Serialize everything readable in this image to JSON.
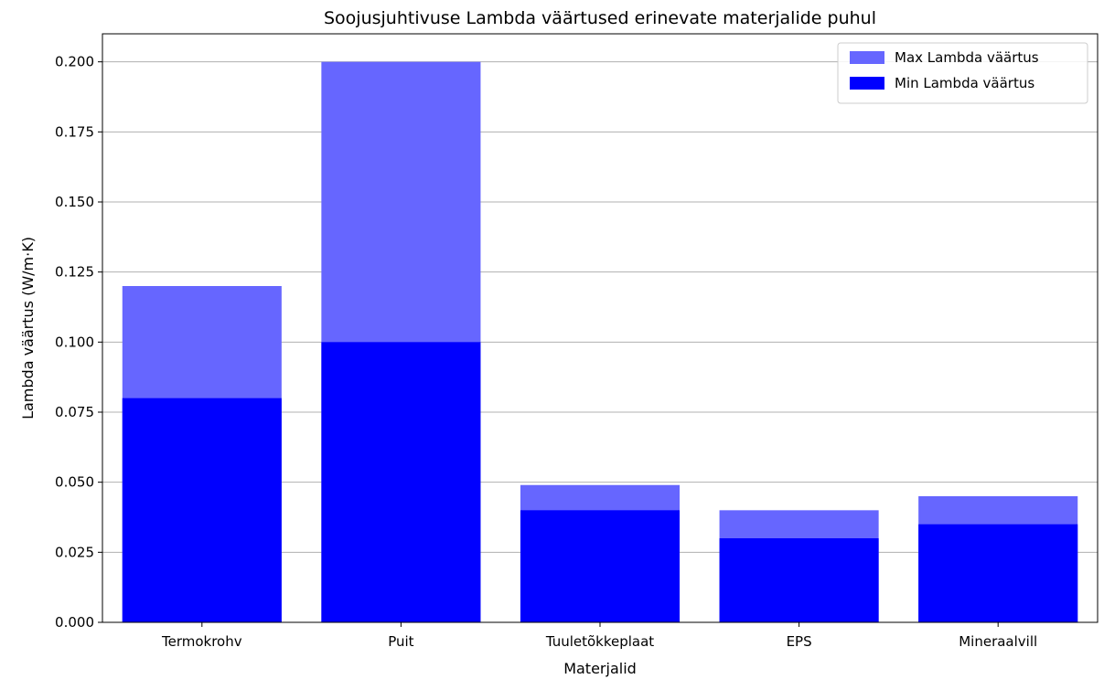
{
  "chart_data": {
    "type": "bar",
    "stacked": false,
    "overlay": true,
    "title": "Soojusjuhtivuse Lambda väärtused erinevate materjalide puhul",
    "xlabel": "Materjalid",
    "ylabel": "Lambda väärtus (W/m·K)",
    "categories": [
      "Termokrohv",
      "Puit",
      "Tuuletõkkeplaat",
      "EPS",
      "Mineraalvill"
    ],
    "series": [
      {
        "name": "Max Lambda väärtus",
        "values": [
          0.12,
          0.2,
          0.049,
          0.04,
          0.045
        ],
        "color": "#6666ff"
      },
      {
        "name": "Min Lambda väärtus",
        "values": [
          0.08,
          0.1,
          0.04,
          0.03,
          0.035
        ],
        "color": "#0000ff"
      }
    ],
    "ylim": [
      0,
      0.21
    ],
    "yticks": [
      "0.000",
      "0.025",
      "0.050",
      "0.075",
      "0.100",
      "0.125",
      "0.150",
      "0.175",
      "0.200"
    ],
    "grid": "y",
    "legend_position": "top-right"
  }
}
